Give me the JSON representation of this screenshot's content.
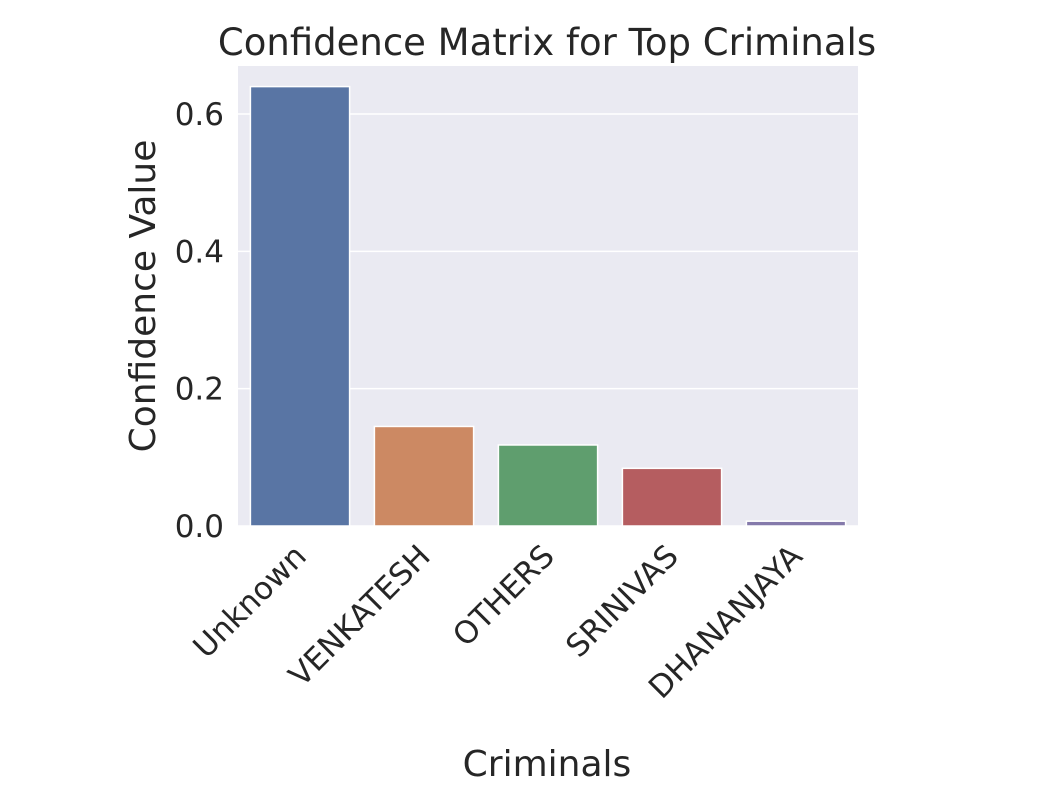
{
  "chart_data": {
    "type": "bar",
    "title": "Confidence Matrix for Top Criminals",
    "xlabel": "Criminals",
    "ylabel": "Confidence Value",
    "categories": [
      "Unknown",
      "VENKATESH",
      "OTHERS",
      "SRINIVAS",
      "DHANANJAYA"
    ],
    "values": [
      0.64,
      0.145,
      0.118,
      0.084,
      0.007
    ],
    "colors": [
      "#5975a4",
      "#cc8963",
      "#5f9e6e",
      "#b55d60",
      "#857aab"
    ],
    "ylim": [
      0,
      0.67
    ],
    "yticks": [
      0.0,
      0.2,
      0.4,
      0.6
    ],
    "ytick_labels": [
      "0.0",
      "0.2",
      "0.4",
      "0.6"
    ],
    "grid": true,
    "background": "#eaeaf2"
  }
}
